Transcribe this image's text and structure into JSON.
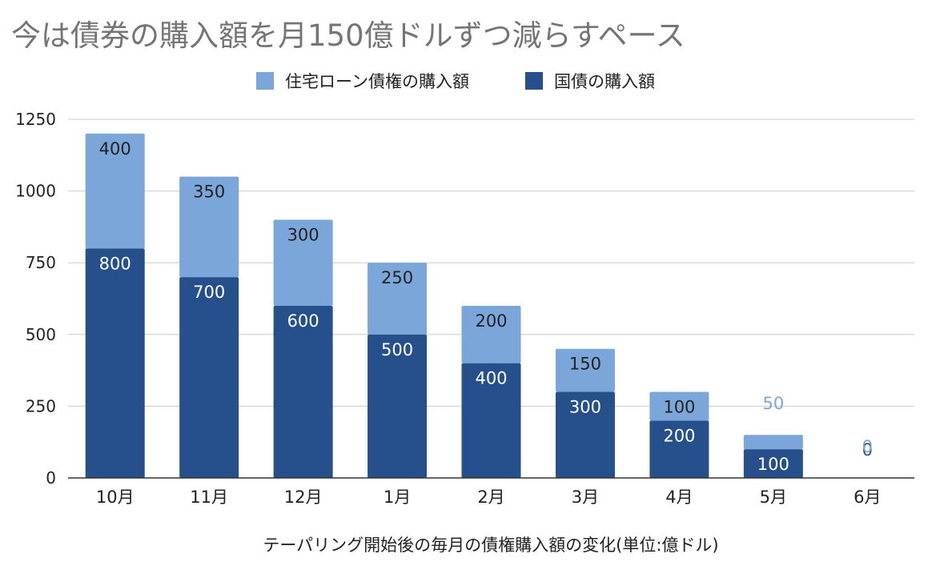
{
  "chart_data": {
    "type": "bar",
    "stacked": true,
    "title": "今は債券の購入額を月150億ドルずつ減らすペース",
    "xlabel": "テーパリング開始後の毎月の債権購入額の変化(単位:億ドル)",
    "ylabel": "",
    "ylim": [
      0,
      1250
    ],
    "yticks": [
      0,
      250,
      500,
      750,
      1000,
      1250
    ],
    "grid": true,
    "legend_position": "top",
    "categories": [
      "10月",
      "11月",
      "12月",
      "1月",
      "2月",
      "3月",
      "4月",
      "5月",
      "6月"
    ],
    "series": [
      {
        "name": "住宅ローン債権の購入額",
        "color": "#7ba6d9",
        "values": [
          400,
          350,
          300,
          250,
          200,
          150,
          100,
          50,
          0
        ]
      },
      {
        "name": "国債の購入額",
        "color": "#26508c",
        "values": [
          800,
          700,
          600,
          500,
          400,
          300,
          200,
          100,
          0
        ]
      }
    ]
  }
}
